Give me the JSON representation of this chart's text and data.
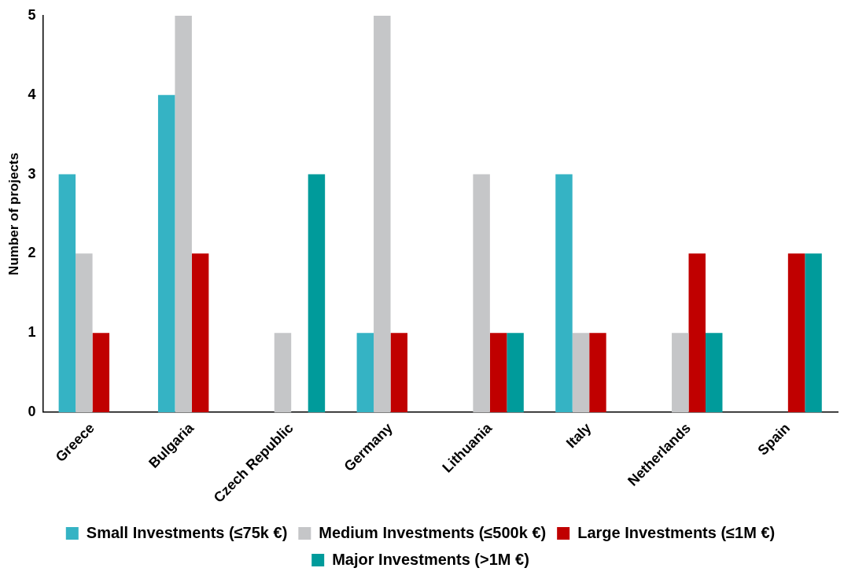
{
  "chart_data": {
    "type": "bar",
    "ylabel": "Number of projects",
    "categories": [
      "Greece",
      "Bulgaria",
      "Czech Republic",
      "Germany",
      "Lithuania",
      "Italy",
      "Netherlands",
      "Spain"
    ],
    "series": [
      {
        "name": "Small Investments (≤75k €)",
        "color": "#35b3c4",
        "values": [
          3,
          4,
          0,
          1,
          0,
          3,
          0,
          0
        ]
      },
      {
        "name": "Medium Investments (≤500k €)",
        "color": "#c5c6c8",
        "values": [
          2,
          5,
          1,
          5,
          3,
          1,
          1,
          0
        ]
      },
      {
        "name": "Large Investments (≤1M €)",
        "color": "#c00000",
        "values": [
          1,
          2,
          0,
          1,
          1,
          1,
          2,
          2
        ]
      },
      {
        "name": "Major Investments (>1M €)",
        "color": "#009b9b",
        "values": [
          0,
          0,
          3,
          0,
          1,
          0,
          1,
          2
        ]
      }
    ],
    "ylim": [
      0,
      5
    ],
    "yticks": [
      0,
      1,
      2,
      3,
      4,
      5
    ],
    "grid": false,
    "legend": "bottom"
  }
}
